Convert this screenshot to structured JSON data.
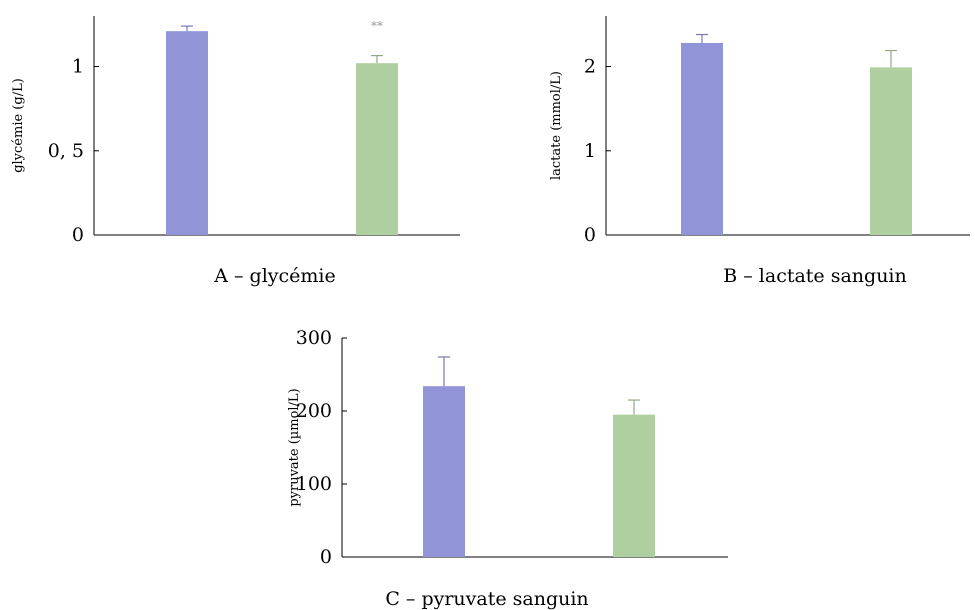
{
  "chart_data": [
    {
      "type": "bar",
      "panel": "A",
      "caption": "A – glycémie",
      "ylabel": "glycémie (g/L)",
      "ylim": [
        0,
        1.3
      ],
      "yticks": [
        0,
        0.5,
        1
      ],
      "ytick_labels": [
        "0",
        "0, 5",
        "1"
      ],
      "values": [
        1.21,
        1.02
      ],
      "errors": [
        0.03,
        0.045
      ],
      "colors": [
        "#9195d8",
        "#b0cfa1"
      ],
      "annotations": [
        {
          "bar": 1,
          "text": "**"
        }
      ],
      "grid": false
    },
    {
      "type": "bar",
      "panel": "B",
      "caption": "B – lactate sanguin",
      "ylabel": "lactate (mmol/L)",
      "ylim": [
        0,
        2.6
      ],
      "yticks": [
        0,
        1,
        2
      ],
      "ytick_labels": [
        "0",
        "1",
        "2"
      ],
      "values": [
        2.28,
        1.99
      ],
      "errors": [
        0.1,
        0.2
      ],
      "colors": [
        "#9195d8",
        "#b0cfa1"
      ],
      "annotations": [],
      "grid": false
    },
    {
      "type": "bar",
      "panel": "C",
      "caption": "C – pyruvate sanguin",
      "ylabel": "pyruvate (µmol/L)",
      "ylim": [
        0,
        300
      ],
      "yticks": [
        0,
        100,
        200,
        300
      ],
      "ytick_labels": [
        "0",
        "100",
        "200",
        "300"
      ],
      "values": [
        234,
        195
      ],
      "errors": [
        40,
        20
      ],
      "colors": [
        "#9195d8",
        "#b0cfa1"
      ],
      "annotations": [],
      "grid": false
    }
  ]
}
